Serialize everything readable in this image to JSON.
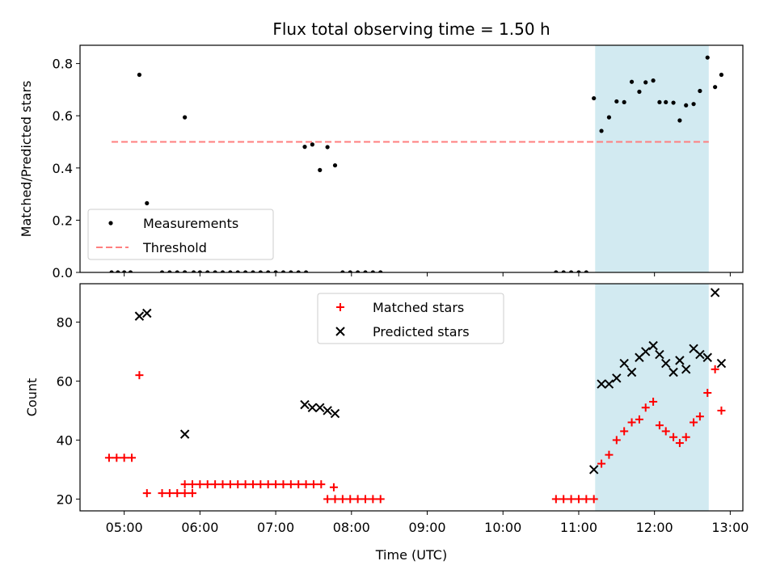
{
  "chart_data": {
    "title": "Flux total observing time = 1.50 h",
    "xlabel": "Time (UTC)",
    "x_ticks": [
      "05:00",
      "06:00",
      "07:00",
      "08:00",
      "09:00",
      "10:00",
      "11:00",
      "12:00",
      "13:00"
    ],
    "xlim": [
      "04:25",
      "13:10"
    ],
    "highlight_span": [
      "11:13",
      "12:43"
    ],
    "highlight_color": "#add8e6",
    "panels": [
      {
        "type": "scatter",
        "ylabel": "Matched/Predicted stars",
        "ylim": [
          0,
          0.87
        ],
        "y_ticks": [
          0.0,
          0.2,
          0.4,
          0.6,
          0.8
        ],
        "y_tick_labels": [
          "0.0",
          "0.2",
          "0.4",
          "0.6",
          "0.8"
        ],
        "legend_position": "lower-left",
        "series": [
          {
            "name": "Measurements",
            "marker": "dot",
            "color": "#000000",
            "points": [
              [
                "04:50",
                0
              ],
              [
                "04:55",
                0
              ],
              [
                "05:00",
                0
              ],
              [
                "05:05",
                0
              ],
              [
                "05:12",
                0.757
              ],
              [
                "05:18",
                0.265
              ],
              [
                "05:30",
                0
              ],
              [
                "05:36",
                0
              ],
              [
                "05:42",
                0
              ],
              [
                "05:48",
                0
              ],
              [
                "05:48",
                0
              ],
              [
                "05:48",
                0.594
              ],
              [
                "05:55",
                0
              ],
              [
                "06:00",
                0
              ],
              [
                "06:06",
                0
              ],
              [
                "06:12",
                0
              ],
              [
                "06:18",
                0
              ],
              [
                "06:24",
                0
              ],
              [
                "06:30",
                0
              ],
              [
                "06:36",
                0
              ],
              [
                "06:42",
                0
              ],
              [
                "06:48",
                0
              ],
              [
                "06:54",
                0
              ],
              [
                "07:00",
                0
              ],
              [
                "07:06",
                0
              ],
              [
                "07:12",
                0
              ],
              [
                "07:18",
                0
              ],
              [
                "07:24",
                0
              ],
              [
                "07:23",
                0.481
              ],
              [
                "07:29",
                0.49
              ],
              [
                "07:35",
                0.392
              ],
              [
                "07:41",
                0.48
              ],
              [
                "07:47",
                0.41
              ],
              [
                "07:53",
                0
              ],
              [
                "07:59",
                0
              ],
              [
                "08:05",
                0
              ],
              [
                "08:11",
                0
              ],
              [
                "08:17",
                0
              ],
              [
                "08:23",
                0
              ],
              [
                "10:42",
                0
              ],
              [
                "10:48",
                0
              ],
              [
                "10:54",
                0
              ],
              [
                "11:00",
                0
              ],
              [
                "11:06",
                0
              ],
              [
                "11:12",
                0.667
              ],
              [
                "11:18",
                0.542
              ],
              [
                "11:24",
                0.594
              ],
              [
                "11:30",
                0.655
              ],
              [
                "11:36",
                0.652
              ],
              [
                "11:42",
                0.73
              ],
              [
                "11:48",
                0.692
              ],
              [
                "11:53",
                0.728
              ],
              [
                "11:59",
                0.735
              ],
              [
                "12:04",
                0.652
              ],
              [
                "12:09",
                0.652
              ],
              [
                "12:15",
                0.65
              ],
              [
                "12:20",
                0.582
              ],
              [
                "12:25",
                0.64
              ],
              [
                "12:31",
                0.645
              ],
              [
                "12:36",
                0.695
              ],
              [
                "12:42",
                0.823
              ],
              [
                "12:48",
                0.71
              ],
              [
                "12:53",
                0.757
              ]
            ]
          },
          {
            "name": "Threshold",
            "style": "dashed",
            "color": "#ff7f7f",
            "value": 0.5,
            "x_range": [
              "04:50",
              "12:43"
            ]
          }
        ]
      },
      {
        "type": "scatter",
        "ylabel": "Count",
        "ylim": [
          16,
          93
        ],
        "y_ticks": [
          20,
          40,
          60,
          80
        ],
        "y_tick_labels": [
          "20",
          "40",
          "60",
          "80"
        ],
        "legend_position": "upper-center",
        "series": [
          {
            "name": "Matched stars",
            "marker": "plus",
            "color": "#ff0000",
            "points": [
              [
                "04:48",
                34
              ],
              [
                "04:54",
                34
              ],
              [
                "05:00",
                34
              ],
              [
                "05:06",
                34
              ],
              [
                "05:12",
                62
              ],
              [
                "05:18",
                22
              ],
              [
                "05:30",
                22
              ],
              [
                "05:36",
                22
              ],
              [
                "05:42",
                22
              ],
              [
                "05:48",
                22
              ],
              [
                "05:54",
                22
              ],
              [
                "05:48",
                25
              ],
              [
                "05:54",
                25
              ],
              [
                "06:00",
                25
              ],
              [
                "06:06",
                25
              ],
              [
                "06:12",
                25
              ],
              [
                "06:18",
                25
              ],
              [
                "06:24",
                25
              ],
              [
                "06:30",
                25
              ],
              [
                "06:36",
                25
              ],
              [
                "06:42",
                25
              ],
              [
                "06:48",
                25
              ],
              [
                "06:54",
                25
              ],
              [
                "07:00",
                25
              ],
              [
                "07:06",
                25
              ],
              [
                "07:12",
                25
              ],
              [
                "07:18",
                25
              ],
              [
                "07:24",
                25
              ],
              [
                "07:30",
                25
              ],
              [
                "07:36",
                25
              ],
              [
                "07:41",
                20
              ],
              [
                "07:46",
                24
              ],
              [
                "07:47",
                20
              ],
              [
                "07:53",
                20
              ],
              [
                "07:59",
                20
              ],
              [
                "08:05",
                20
              ],
              [
                "08:11",
                20
              ],
              [
                "08:17",
                20
              ],
              [
                "08:23",
                20
              ],
              [
                "10:42",
                20
              ],
              [
                "10:48",
                20
              ],
              [
                "10:54",
                20
              ],
              [
                "11:00",
                20
              ],
              [
                "11:06",
                20
              ],
              [
                "11:12",
                20
              ],
              [
                "11:18",
                32
              ],
              [
                "11:24",
                35
              ],
              [
                "11:30",
                40
              ],
              [
                "11:36",
                43
              ],
              [
                "11:42",
                46
              ],
              [
                "11:48",
                47
              ],
              [
                "11:53",
                51
              ],
              [
                "11:59",
                53
              ],
              [
                "12:04",
                45
              ],
              [
                "12:09",
                43
              ],
              [
                "12:15",
                41
              ],
              [
                "12:20",
                39
              ],
              [
                "12:25",
                41
              ],
              [
                "12:31",
                46
              ],
              [
                "12:36",
                48
              ],
              [
                "12:42",
                56
              ],
              [
                "12:48",
                64
              ],
              [
                "12:53",
                50
              ]
            ]
          },
          {
            "name": "Predicted stars",
            "marker": "x",
            "color": "#000000",
            "points": [
              [
                "05:12",
                82
              ],
              [
                "05:18",
                83
              ],
              [
                "05:48",
                42
              ],
              [
                "07:23",
                52
              ],
              [
                "07:29",
                51
              ],
              [
                "07:35",
                51
              ],
              [
                "07:41",
                50
              ],
              [
                "07:47",
                49
              ],
              [
                "11:12",
                30
              ],
              [
                "11:18",
                59
              ],
              [
                "11:24",
                59
              ],
              [
                "11:30",
                61
              ],
              [
                "11:36",
                66
              ],
              [
                "11:42",
                63
              ],
              [
                "11:48",
                68
              ],
              [
                "11:53",
                70
              ],
              [
                "11:59",
                72
              ],
              [
                "12:04",
                69
              ],
              [
                "12:09",
                66
              ],
              [
                "12:15",
                63
              ],
              [
                "12:20",
                67
              ],
              [
                "12:25",
                64
              ],
              [
                "12:31",
                71
              ],
              [
                "12:36",
                69
              ],
              [
                "12:42",
                68
              ],
              [
                "12:48",
                90
              ],
              [
                "12:53",
                66
              ]
            ]
          }
        ]
      }
    ]
  }
}
